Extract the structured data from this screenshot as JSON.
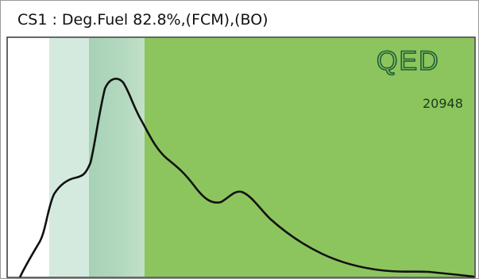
{
  "header": {
    "title": "CS1 : Deg.Fuel 82.8%,(FCM),(BO)"
  },
  "panel": {
    "logo": "QED",
    "count": "20948"
  }
}
